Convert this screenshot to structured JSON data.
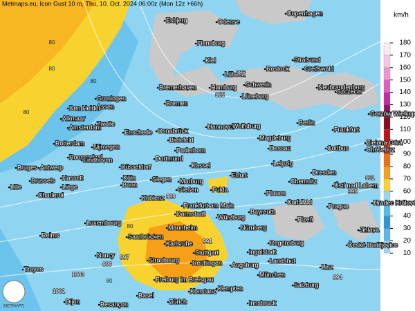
{
  "header": {
    "title": "Metmaps.eu, Icon Gust 10 m, Thu, 10. Oct. 2024 06:00z (Mon 12z +66h)",
    "logo": "METMAPS"
  },
  "legend": {
    "unit": "km/h",
    "items": [
      {
        "label": "180",
        "color": "#fbe9f4"
      },
      {
        "label": "170",
        "color": "#f7c6e6"
      },
      {
        "label": "160",
        "color": "#ef93d3"
      },
      {
        "label": "150",
        "color": "#e15ec0"
      },
      {
        "label": "140",
        "color": "#c42aa0"
      },
      {
        "label": "130",
        "color": "#96106b"
      },
      {
        "label": "120",
        "color": "#8b0a1e"
      },
      {
        "label": "110",
        "color": "#c2101a"
      },
      {
        "label": "100",
        "color": "#e4371a"
      },
      {
        "label": "90",
        "color": "#f26d13"
      },
      {
        "label": "80",
        "color": "#f6a018"
      },
      {
        "label": "70",
        "color": "#f8d330"
      },
      {
        "label": "60",
        "color": "#93d8ee"
      },
      {
        "label": "50",
        "color": "#54bde8"
      },
      {
        "label": "40",
        "color": "#2d96d8"
      },
      {
        "label": "30",
        "color": "#59b7ea"
      },
      {
        "label": "20",
        "color": "#9fd4f2"
      },
      {
        "label": "10",
        "color": "#d6ecf8"
      }
    ]
  },
  "cities": [
    "Esbjerg",
    "Odense",
    "Copenhagen",
    "Flensburg",
    "Kiel",
    "Lübeck",
    "Rostock",
    "Stralsund",
    "Greifswald",
    "Schwerin",
    "Bremerhaven",
    "Hamburg",
    "Neubrandenburg",
    "Szczecin",
    "Groningen",
    "Assen",
    "Bremen",
    "Lüneburg",
    "Den Helder",
    "Alkmaar",
    "Zwolle",
    "Amsterdam",
    "Enschede",
    "Osnabrück",
    "Hannover",
    "Wolfsburg",
    "Berlin",
    "Frankfurt",
    "Gorzów Wielkopolski",
    "Bielefeld",
    "Magdeburg",
    "Rotterdam",
    "Nijmegen",
    "Paderborn",
    "Dessau",
    "Cottbus",
    "Zielona Góra",
    "Chóśebuz",
    "Roosendaal",
    "Eindhoven",
    "Dortmund",
    "Kassel",
    "Leipzig",
    "Bruges",
    "Antwerp",
    "Düsseldorf",
    "Köln",
    "Dresden",
    "Brussels",
    "Hasselt",
    "Bonn",
    "Siegen",
    "Marburg",
    "Erfurt",
    "Liège",
    "Gießen",
    "Fulda",
    "Chemnitz",
    "Ústí nad Labem",
    "Lille",
    "Plauen",
    "Charleroi",
    "Koblenz",
    "Carlsbad",
    "Prague",
    "Hradec Králové",
    "Frankfurt am Main",
    "Bayreuth",
    "Darmstadt",
    "Würzburg",
    "Plzeň",
    "Luxembourg",
    "Mannheim",
    "Nürnberg",
    "Jihlava",
    "Reims",
    "Saarbrücken",
    "Karlsruhe",
    "Regensburg",
    "České Budějovice",
    "Ingolstadt",
    "Stuttgart",
    "Nancy",
    "Strasbourg",
    "Reutlingen",
    "Landshut",
    "Linz",
    "Augsburg",
    "Troyes",
    "München",
    "Freiburg im Breisgau",
    "Kempten",
    "Salzburg",
    "Basel",
    "Konstanz",
    "Zürich",
    "Dijon",
    "Besançon",
    "Innsbruck"
  ],
  "isobar_labels": [
    "986",
    "985",
    "991",
    "993",
    "994",
    "999",
    "1003",
    "1001",
    "997",
    "989",
    "991",
    "995"
  ],
  "contour_labels": [
    "80",
    "80",
    "80",
    "80",
    "80",
    "80"
  ]
}
